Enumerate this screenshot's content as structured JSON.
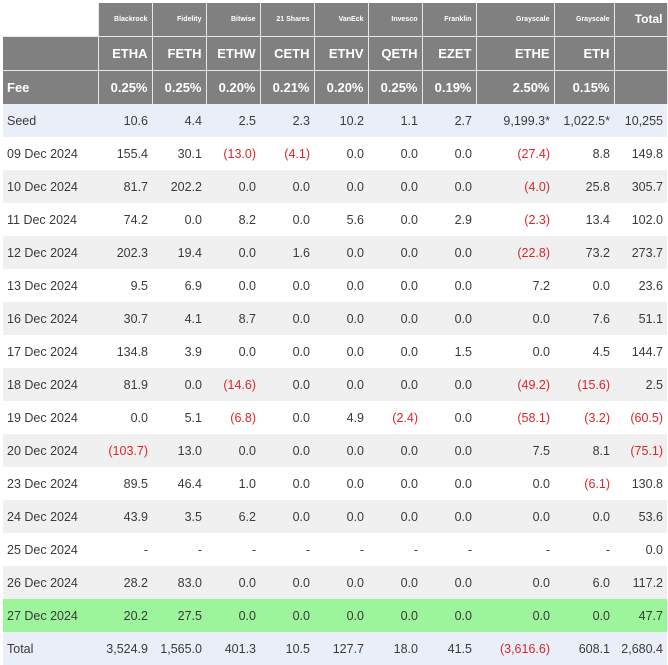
{
  "header": {
    "total_label": "Total",
    "fee_label": "Fee",
    "issuers": [
      "Blackrock",
      "Fidelity",
      "Bitwise",
      "21 Shares",
      "VanEck",
      "Invesco",
      "Franklin",
      "Grayscale",
      "Grayscale"
    ],
    "tickers": [
      "ETHA",
      "FETH",
      "ETHW",
      "CETH",
      "ETHV",
      "QETH",
      "EZET",
      "ETHE",
      "ETH"
    ],
    "fees": [
      "0.25%",
      "0.25%",
      "0.20%",
      "0.21%",
      "0.20%",
      "0.25%",
      "0.19%",
      "2.50%",
      "0.15%"
    ]
  },
  "rows": [
    {
      "label": "Seed",
      "values": [
        "10.6",
        "4.4",
        "2.5",
        "2.3",
        "10.2",
        "1.1",
        "2.7",
        "9,199.3*",
        "1,022.5*",
        "10,255"
      ],
      "style": "seed"
    },
    {
      "label": "09 Dec 2024",
      "values": [
        "155.4",
        "30.1",
        "(13.0)",
        "(4.1)",
        "0.0",
        "0.0",
        "0.0",
        "(27.4)",
        "8.8",
        "149.8"
      ],
      "style": "white"
    },
    {
      "label": "10 Dec 2024",
      "values": [
        "81.7",
        "202.2",
        "0.0",
        "0.0",
        "0.0",
        "0.0",
        "0.0",
        "(4.0)",
        "25.8",
        "305.7"
      ],
      "style": "alt"
    },
    {
      "label": "11 Dec 2024",
      "values": [
        "74.2",
        "0.0",
        "8.2",
        "0.0",
        "5.6",
        "0.0",
        "2.9",
        "(2.3)",
        "13.4",
        "102.0"
      ],
      "style": "white"
    },
    {
      "label": "12 Dec 2024",
      "values": [
        "202.3",
        "19.4",
        "0.0",
        "1.6",
        "0.0",
        "0.0",
        "0.0",
        "(22.8)",
        "73.2",
        "273.7"
      ],
      "style": "alt"
    },
    {
      "label": "13 Dec 2024",
      "values": [
        "9.5",
        "6.9",
        "0.0",
        "0.0",
        "0.0",
        "0.0",
        "0.0",
        "7.2",
        "0.0",
        "23.6"
      ],
      "style": "white"
    },
    {
      "label": "16 Dec 2024",
      "values": [
        "30.7",
        "4.1",
        "8.7",
        "0.0",
        "0.0",
        "0.0",
        "0.0",
        "0.0",
        "7.6",
        "51.1"
      ],
      "style": "alt"
    },
    {
      "label": "17 Dec 2024",
      "values": [
        "134.8",
        "3.9",
        "0.0",
        "0.0",
        "0.0",
        "0.0",
        "1.5",
        "0.0",
        "4.5",
        "144.7"
      ],
      "style": "white"
    },
    {
      "label": "18 Dec 2024",
      "values": [
        "81.9",
        "0.0",
        "(14.6)",
        "0.0",
        "0.0",
        "0.0",
        "0.0",
        "(49.2)",
        "(15.6)",
        "2.5"
      ],
      "style": "alt"
    },
    {
      "label": "19 Dec 2024",
      "values": [
        "0.0",
        "5.1",
        "(6.8)",
        "0.0",
        "4.9",
        "(2.4)",
        "0.0",
        "(58.1)",
        "(3.2)",
        "(60.5)"
      ],
      "style": "white"
    },
    {
      "label": "20 Dec 2024",
      "values": [
        "(103.7)",
        "13.0",
        "0.0",
        "0.0",
        "0.0",
        "0.0",
        "0.0",
        "7.5",
        "8.1",
        "(75.1)"
      ],
      "style": "alt"
    },
    {
      "label": "23 Dec 2024",
      "values": [
        "89.5",
        "46.4",
        "1.0",
        "0.0",
        "0.0",
        "0.0",
        "0.0",
        "0.0",
        "(6.1)",
        "130.8"
      ],
      "style": "white"
    },
    {
      "label": "24 Dec 2024",
      "values": [
        "43.9",
        "3.5",
        "6.2",
        "0.0",
        "0.0",
        "0.0",
        "0.0",
        "0.0",
        "0.0",
        "53.6"
      ],
      "style": "alt"
    },
    {
      "label": "25 Dec 2024",
      "values": [
        "-",
        "-",
        "-",
        "-",
        "-",
        "-",
        "-",
        "-",
        "-",
        "0.0"
      ],
      "style": "white"
    },
    {
      "label": "26 Dec 2024",
      "values": [
        "28.2",
        "83.0",
        "0.0",
        "0.0",
        "0.0",
        "0.0",
        "0.0",
        "0.0",
        "6.0",
        "117.2"
      ],
      "style": "alt"
    },
    {
      "label": "27 Dec 2024",
      "values": [
        "20.2",
        "27.5",
        "0.0",
        "0.0",
        "0.0",
        "0.0",
        "0.0",
        "0.0",
        "0.0",
        "47.7"
      ],
      "style": "highlight"
    },
    {
      "label": "Total",
      "values": [
        "3,524.9",
        "1,565.0",
        "401.3",
        "10.5",
        "127.7",
        "18.0",
        "41.5",
        "(3,616.6)",
        "608.1",
        "2,680.4"
      ],
      "style": "total-row"
    }
  ],
  "colors": {
    "header_bg": "#808080",
    "negative": "#d9262c",
    "seed_bg": "#e9eef8",
    "highlight_bg": "#9cf59a"
  }
}
